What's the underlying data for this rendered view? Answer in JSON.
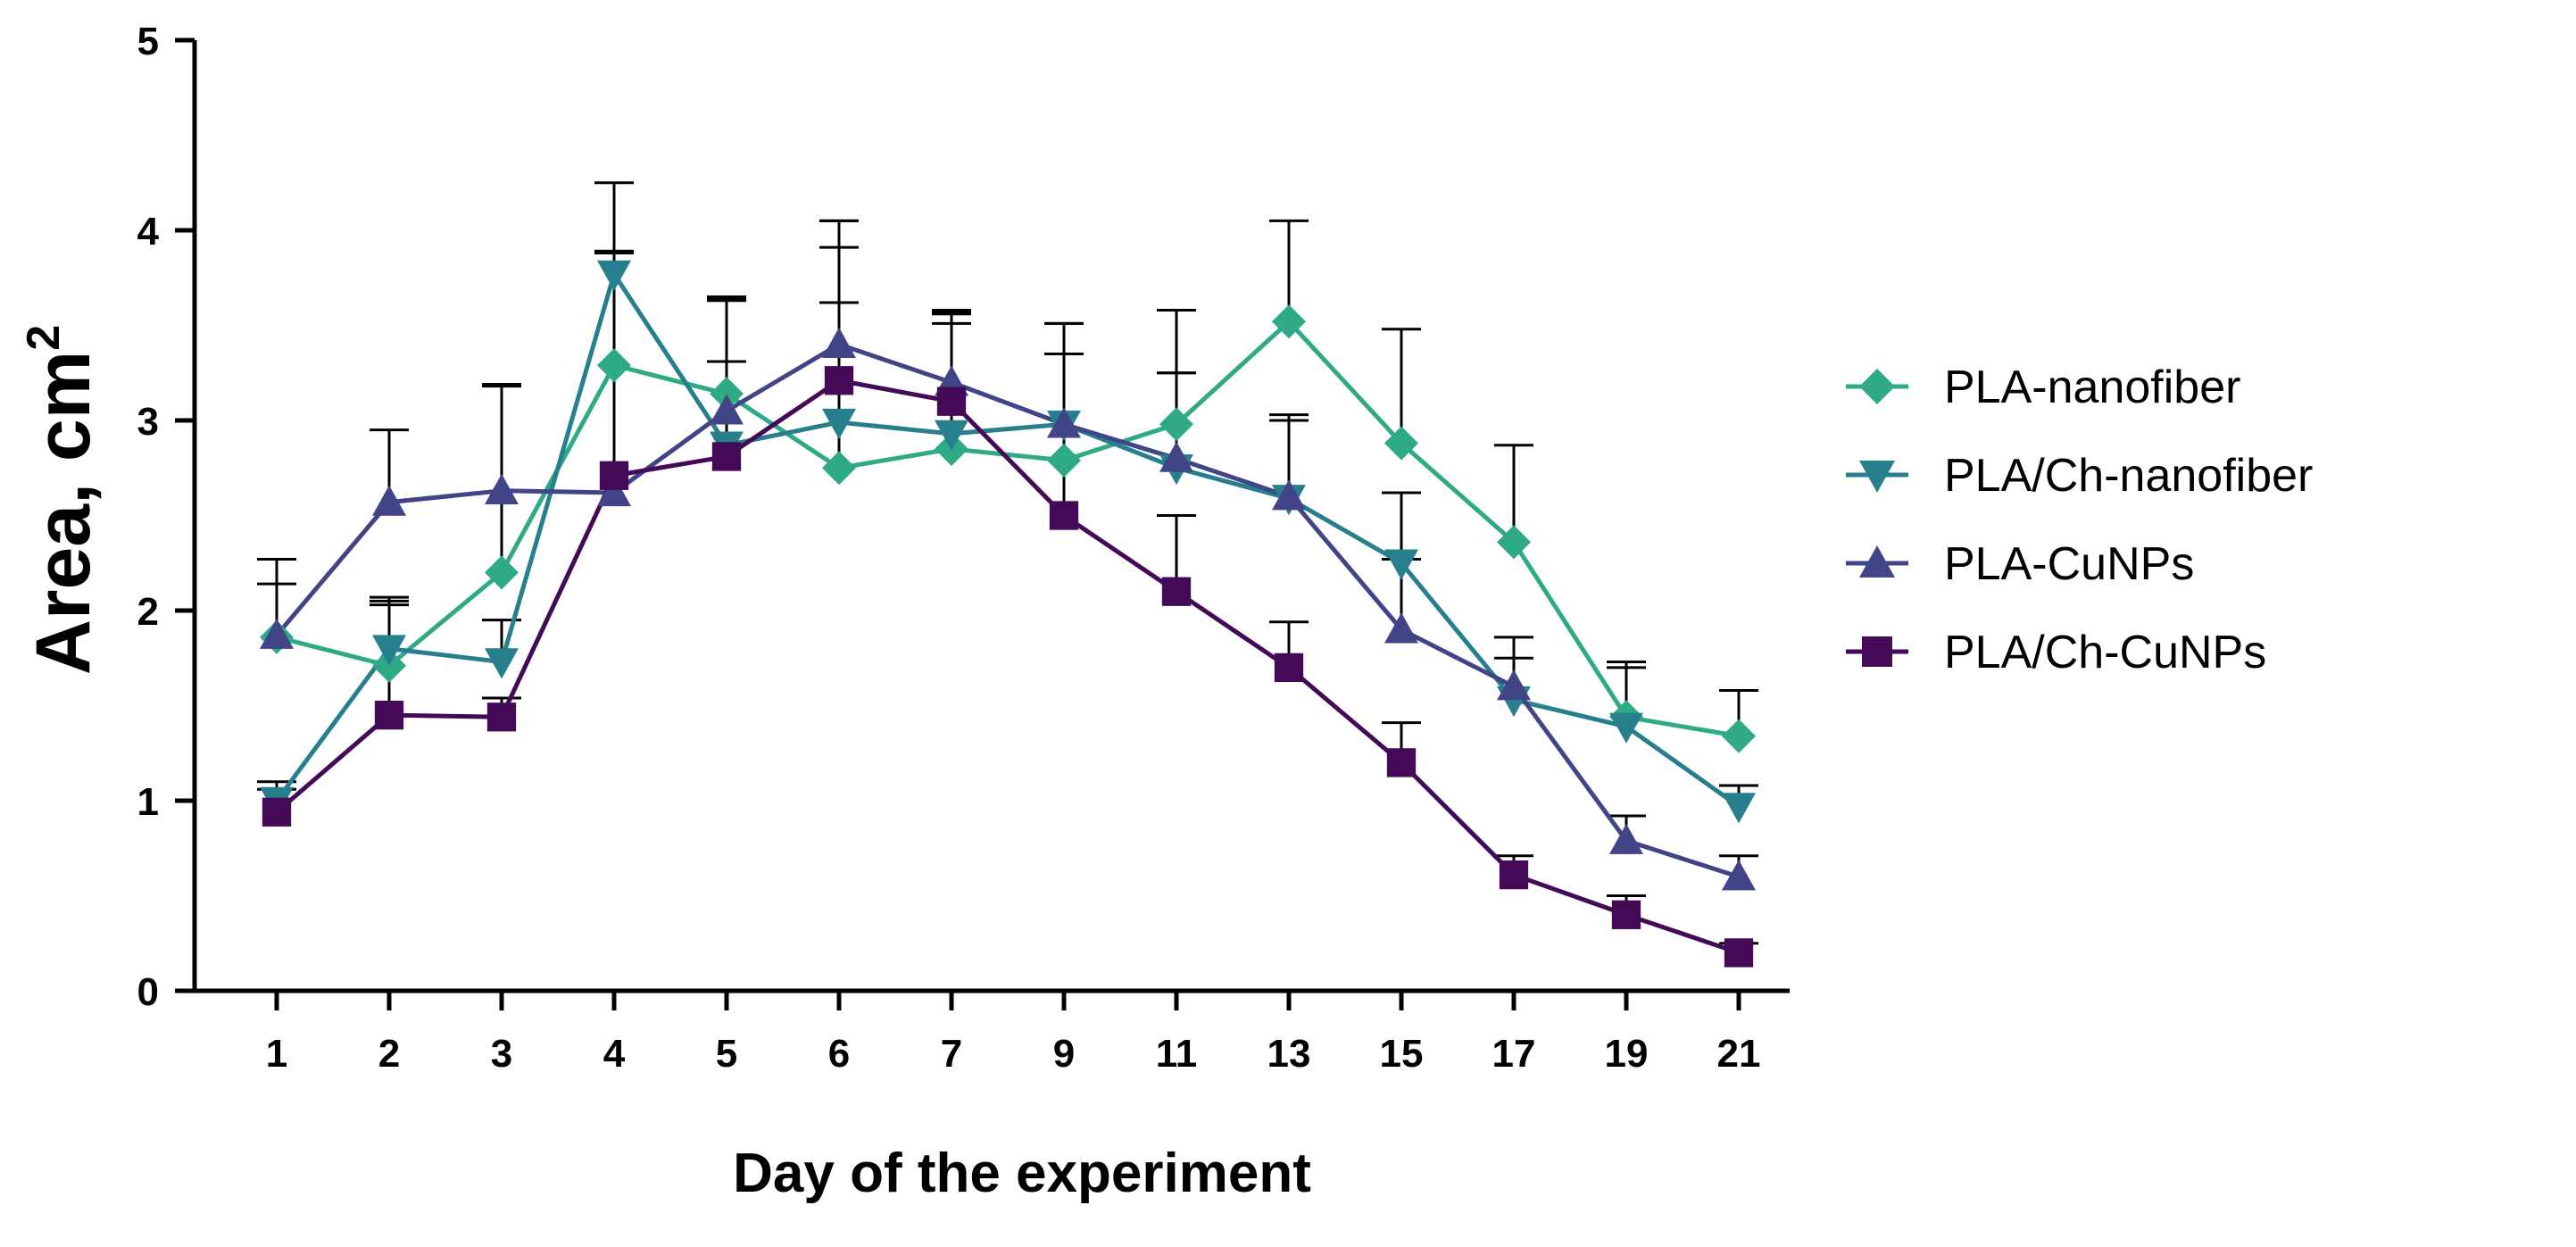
{
  "chart_data": {
    "type": "line",
    "xlabel": "Day of the experiment",
    "ylabel": "Area, cm",
    "ylabel_superscript": "2",
    "categories": [
      "1",
      "2",
      "3",
      "4",
      "5",
      "6",
      "7",
      "9",
      "11",
      "13",
      "15",
      "17",
      "19",
      "21"
    ],
    "ylim": [
      0,
      5
    ],
    "yticks": [
      "0",
      "1",
      "2",
      "3",
      "4",
      "5"
    ],
    "grid": false,
    "legend_position": "right",
    "error_bars": "upper",
    "series": [
      {
        "name": "PLA-nanofiber",
        "marker": "diamond",
        "color": "#2eaa87",
        "values": [
          1.86,
          1.71,
          2.2,
          3.29,
          3.14,
          2.75,
          2.85,
          2.79,
          2.98,
          3.52,
          2.88,
          2.36,
          1.44,
          1.34
        ],
        "errors": [
          0.28,
          0.34,
          0.98,
          0.6,
          0.5,
          1.3,
          0.72,
          0.72,
          0.6,
          0.53,
          0.6,
          0.51,
          0.29,
          0.24
        ]
      },
      {
        "name": "PLA/Ch-nanofiber",
        "marker": "triangle-down",
        "color": "#277f8e",
        "values": [
          1.0,
          1.8,
          1.73,
          3.77,
          2.87,
          2.99,
          2.93,
          2.98,
          2.75,
          2.59,
          2.25,
          1.53,
          1.39,
          0.97
        ],
        "errors": [
          0.1,
          0.27,
          0.22,
          0.48,
          0.76,
          0.63,
          0.63,
          0.53,
          0.5,
          0.44,
          0.37,
          0.33,
          0.31,
          0.11
        ]
      },
      {
        "name": "PLA-CuNPs",
        "marker": "triangle-up",
        "color": "#414487",
        "values": [
          1.87,
          2.57,
          2.63,
          2.62,
          3.05,
          3.4,
          3.2,
          2.98,
          2.8,
          2.6,
          1.9,
          1.6,
          0.79,
          0.6
        ],
        "errors": [
          0.4,
          0.38,
          0.56,
          1.26,
          0.6,
          0.65,
          0.38,
          0.37,
          0.45,
          0.4,
          0.37,
          0.15,
          0.13,
          0.11
        ]
      },
      {
        "name": "PLA/Ch-CuNPs",
        "marker": "square",
        "color": "#440a57",
        "values": [
          0.94,
          1.45,
          1.44,
          2.71,
          2.81,
          3.21,
          3.1,
          2.5,
          2.1,
          1.7,
          1.2,
          0.61,
          0.4,
          0.2
        ],
        "errors": [
          0.12,
          0.58,
          0.1,
          1.18,
          0.5,
          0.7,
          0.41,
          0.85,
          0.4,
          0.24,
          0.21,
          0.1,
          0.1,
          0.05
        ]
      }
    ]
  }
}
